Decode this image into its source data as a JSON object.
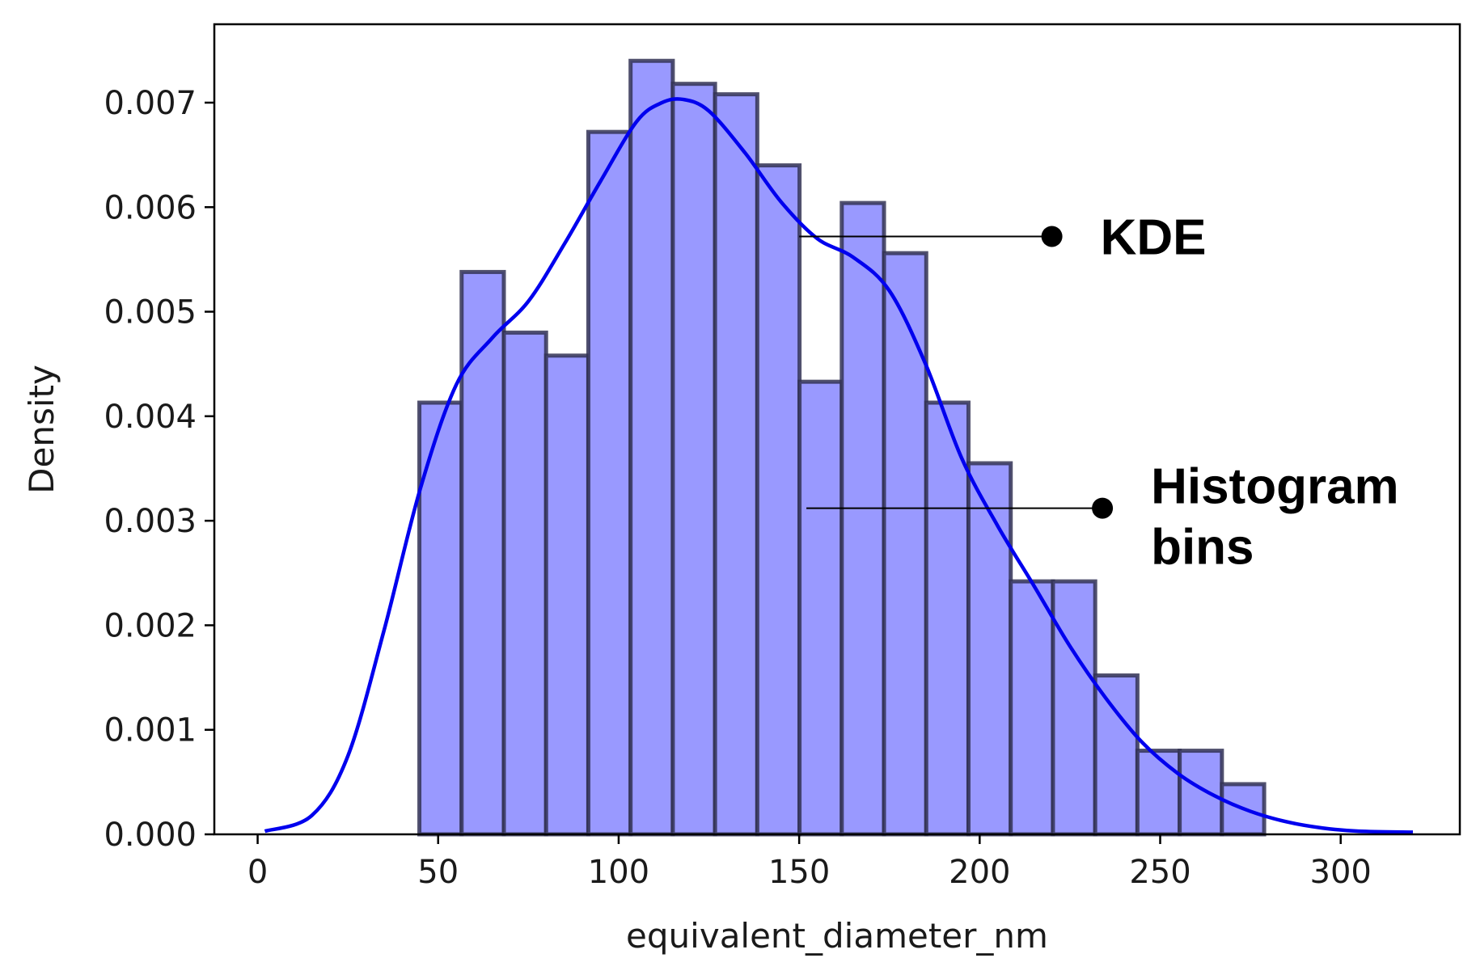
{
  "chart_data": {
    "type": "bar",
    "title": "",
    "xlabel": "equivalent_diameter_nm",
    "ylabel": "Density",
    "xlim": [
      -12,
      333
    ],
    "ylim": [
      0,
      0.00775
    ],
    "x_ticks": [
      0,
      50,
      100,
      150,
      200,
      250,
      300
    ],
    "x_tick_labels": [
      "0",
      "50",
      "100",
      "150",
      "200",
      "250",
      "300"
    ],
    "y_ticks": [
      0,
      0.001,
      0.002,
      0.003,
      0.004,
      0.005,
      0.006,
      0.007
    ],
    "y_tick_labels": [
      "0.000",
      "0.001",
      "0.002",
      "0.003",
      "0.004",
      "0.005",
      "0.006",
      "0.007"
    ],
    "grid": false,
    "colors": {
      "bar_fill": "#9999ff",
      "bar_edge": "#333355",
      "kde_line": "#0000ee",
      "axis": "#000000"
    },
    "bin_edges": [
      44.8,
      56.5,
      68.2,
      79.9,
      91.6,
      103.3,
      115.0,
      126.7,
      138.4,
      150.1,
      161.8,
      173.5,
      185.2,
      196.9,
      208.6,
      220.3,
      232.0,
      243.7,
      255.4,
      267.1,
      278.8
    ],
    "bin_densities": [
      0.00413,
      0.00538,
      0.0048,
      0.00458,
      0.00672,
      0.0074,
      0.00718,
      0.00708,
      0.0064,
      0.00433,
      0.00604,
      0.00556,
      0.00413,
      0.00355,
      0.00242,
      0.00242,
      0.00152,
      0.0008,
      0.0008,
      0.00048
    ],
    "kde": {
      "x": [
        2,
        15,
        25,
        35,
        45,
        55,
        65,
        75,
        85,
        95,
        105,
        112,
        118,
        125,
        135,
        145,
        155,
        165,
        175,
        185,
        195,
        205,
        215,
        225,
        235,
        245,
        255,
        265,
        275,
        285,
        295,
        305,
        320
      ],
      "y": [
        3e-05,
        0.00018,
        0.00075,
        0.00195,
        0.0033,
        0.0043,
        0.00475,
        0.0051,
        0.00565,
        0.00625,
        0.00682,
        0.007,
        0.00703,
        0.00692,
        0.00652,
        0.00605,
        0.0057,
        0.00552,
        0.0052,
        0.0045,
        0.0036,
        0.00295,
        0.00238,
        0.0018,
        0.0013,
        0.00088,
        0.00058,
        0.00037,
        0.00022,
        0.00012,
        6e-05,
        3e-05,
        2e-05
      ]
    },
    "annotations": [
      {
        "lines": [
          "KDE"
        ],
        "point": [
          150,
          0.00572
        ],
        "marker": [
          220,
          0.00572
        ]
      },
      {
        "lines": [
          "Histogram",
          "bins"
        ],
        "point": [
          152,
          0.00312
        ],
        "marker": [
          234,
          0.00312
        ]
      }
    ]
  }
}
